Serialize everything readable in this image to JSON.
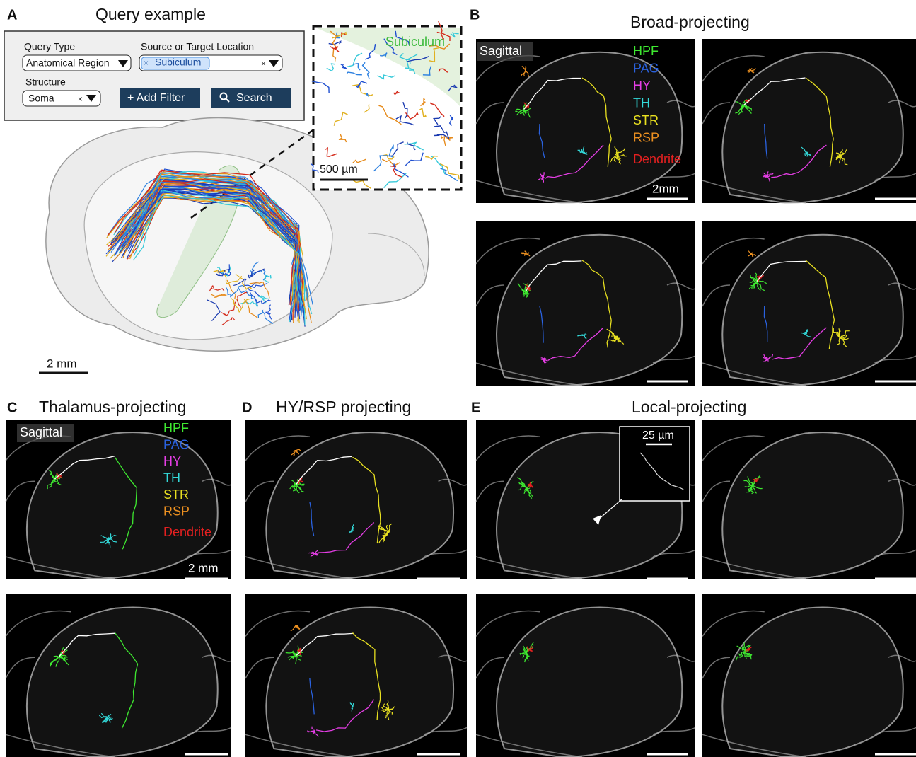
{
  "panel_a": {
    "label": "A",
    "title": "Query example",
    "query_type_label": "Query Type",
    "query_type_value": "Anatomical Region",
    "location_label": "Source or Target Location",
    "location_chip": "Subiculum",
    "structure_label": "Structure",
    "structure_value": "Soma",
    "add_filter": "+ Add Filter",
    "search": "Search",
    "inset_label": "Subiculum",
    "inset_scale": "500 µm",
    "scale": "2 mm"
  },
  "panel_b": {
    "label": "B",
    "title": "Broad-projecting",
    "view": "Sagittal",
    "scale": "2mm"
  },
  "panel_c": {
    "label": "C",
    "title": "Thalamus-projecting",
    "view": "Sagittal",
    "scale": "2 mm"
  },
  "panel_d": {
    "label": "D",
    "title": "HY/RSP projecting"
  },
  "panel_e": {
    "label": "E",
    "title": "Local-projecting",
    "inset_scale": "25 µm"
  },
  "legend": [
    {
      "name": "HPF",
      "color": "#3ee830"
    },
    {
      "name": "PAG",
      "color": "#2a62e0"
    },
    {
      "name": "HY",
      "color": "#e63ee6"
    },
    {
      "name": "TH",
      "color": "#33d9d9"
    },
    {
      "name": "STR",
      "color": "#e8e020"
    },
    {
      "name": "RSP",
      "color": "#ec9020"
    },
    {
      "name": "Dendrite",
      "color": "#e42020"
    }
  ]
}
